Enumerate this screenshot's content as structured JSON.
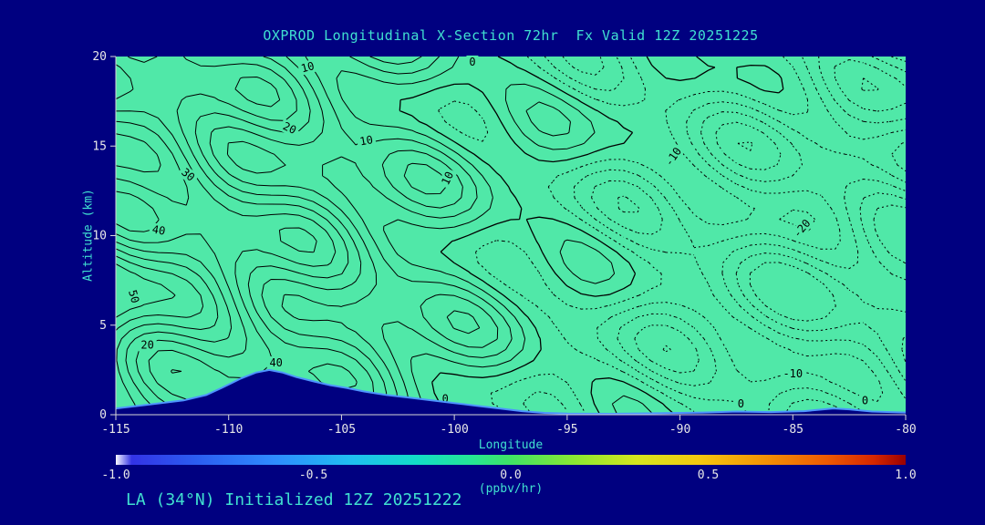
{
  "chart_data": {
    "type": "contour",
    "title": "OXPROD Longitudinal X-Section 72hr  Fx Valid 12Z 20251225",
    "caption": "LA (34°N) Initialized 12Z 20251222",
    "xlabel": "Longitude",
    "ylabel": "Altitude (km)",
    "xlim": [
      -115,
      -80
    ],
    "ylim": [
      0,
      20
    ],
    "x_ticks": [
      -115,
      -110,
      -105,
      -100,
      -95,
      -90,
      -85,
      -80
    ],
    "y_ticks": [
      0,
      5,
      10,
      15,
      20
    ],
    "units": "ppbv/hr",
    "contour_interval": 5,
    "solid_levels": [
      0,
      5,
      10,
      15,
      20,
      25,
      30,
      35,
      40,
      45,
      50,
      55
    ],
    "dotted_levels": [
      -25,
      -20,
      -15,
      -10,
      -5
    ],
    "contour_labels": [
      {
        "text": "10",
        "x": -106.5,
        "y": 19.4,
        "rot": -15
      },
      {
        "text": "0",
        "x": -99.2,
        "y": 19.7,
        "rot": 0
      },
      {
        "text": "20",
        "x": -107.3,
        "y": 16.0,
        "rot": 25
      },
      {
        "text": "10",
        "x": -103.9,
        "y": 15.3,
        "rot": -10
      },
      {
        "text": "30",
        "x": -111.8,
        "y": 13.4,
        "rot": 40
      },
      {
        "text": "40",
        "x": -113.1,
        "y": 10.3,
        "rot": 10
      },
      {
        "text": "50",
        "x": -114.2,
        "y": 6.6,
        "rot": 75
      },
      {
        "text": "10",
        "x": -100.3,
        "y": 13.2,
        "rot": -65
      },
      {
        "text": "20",
        "x": -113.6,
        "y": 3.9,
        "rot": 0
      },
      {
        "text": "40",
        "x": -107.9,
        "y": 2.9,
        "rot": 0
      },
      {
        "text": "0",
        "x": -100.4,
        "y": 0.9,
        "rot": 0
      },
      {
        "text": "-10",
        "x": -90.3,
        "y": 14.4,
        "rot": -55
      },
      {
        "text": "-20",
        "x": -84.6,
        "y": 10.4,
        "rot": -50
      },
      {
        "text": "-10",
        "x": -85.0,
        "y": 2.3,
        "rot": 0
      },
      {
        "text": "0",
        "x": -87.3,
        "y": 0.6,
        "rot": 0
      },
      {
        "text": "0",
        "x": -81.8,
        "y": 0.8,
        "rot": 0
      }
    ],
    "terrain_profile": [
      [
        -115,
        0.35
      ],
      [
        -114,
        0.5
      ],
      [
        -113,
        0.65
      ],
      [
        -112,
        0.8
      ],
      [
        -111,
        1.1
      ],
      [
        -110.3,
        1.5
      ],
      [
        -109.5,
        2.0
      ],
      [
        -108.8,
        2.35
      ],
      [
        -108.2,
        2.5
      ],
      [
        -107.6,
        2.35
      ],
      [
        -107,
        2.1
      ],
      [
        -106.2,
        1.85
      ],
      [
        -105.5,
        1.65
      ],
      [
        -104.8,
        1.5
      ],
      [
        -104,
        1.3
      ],
      [
        -103,
        1.1
      ],
      [
        -102,
        0.95
      ],
      [
        -101,
        0.8
      ],
      [
        -100,
        0.65
      ],
      [
        -99,
        0.5
      ],
      [
        -98,
        0.35
      ],
      [
        -97,
        0.2
      ],
      [
        -96,
        0.1
      ],
      [
        -95,
        0.06
      ],
      [
        -93,
        0.05
      ],
      [
        -91,
        0.08
      ],
      [
        -89,
        0.12
      ],
      [
        -87.5,
        0.18
      ],
      [
        -86,
        0.15
      ],
      [
        -84.5,
        0.2
      ],
      [
        -83.2,
        0.35
      ],
      [
        -82.5,
        0.3
      ],
      [
        -81.5,
        0.18
      ],
      [
        -80,
        0.12
      ]
    ],
    "field_model": {
      "left_amp": 55,
      "right_amp": 22,
      "w1": 7,
      "w2": 5,
      "w3": 4
    },
    "colorbar": {
      "min": -1.0,
      "max": 1.0,
      "tick_labels": [
        "-1.0",
        "-0.5",
        "0.0",
        "0.5",
        "1.0"
      ],
      "label": "(ppbv/hr)",
      "stops": [
        [
          0,
          "#f8f8ff"
        ],
        [
          0.02,
          "#3333e6"
        ],
        [
          0.1,
          "#2b5cf0"
        ],
        [
          0.2,
          "#2e8cff"
        ],
        [
          0.3,
          "#1fc0f0"
        ],
        [
          0.38,
          "#12ddc8"
        ],
        [
          0.45,
          "#25e695"
        ],
        [
          0.5,
          "#3fe465"
        ],
        [
          0.58,
          "#8ae832"
        ],
        [
          0.66,
          "#d6e61e"
        ],
        [
          0.74,
          "#f5c80f"
        ],
        [
          0.82,
          "#f49305"
        ],
        [
          0.9,
          "#ee5a02"
        ],
        [
          0.96,
          "#d62600"
        ],
        [
          1,
          "#990000"
        ]
      ]
    },
    "colors": {
      "background": "#000080",
      "plot_fill": "#50e8a8",
      "contour_line": "#000000",
      "accent_text": "#40e0d0",
      "tick_text": "#e8e8e8",
      "terrain_fill": "#000080",
      "terrain_edge": "#4d94ff",
      "axis_line": "#d8d8d8"
    }
  }
}
